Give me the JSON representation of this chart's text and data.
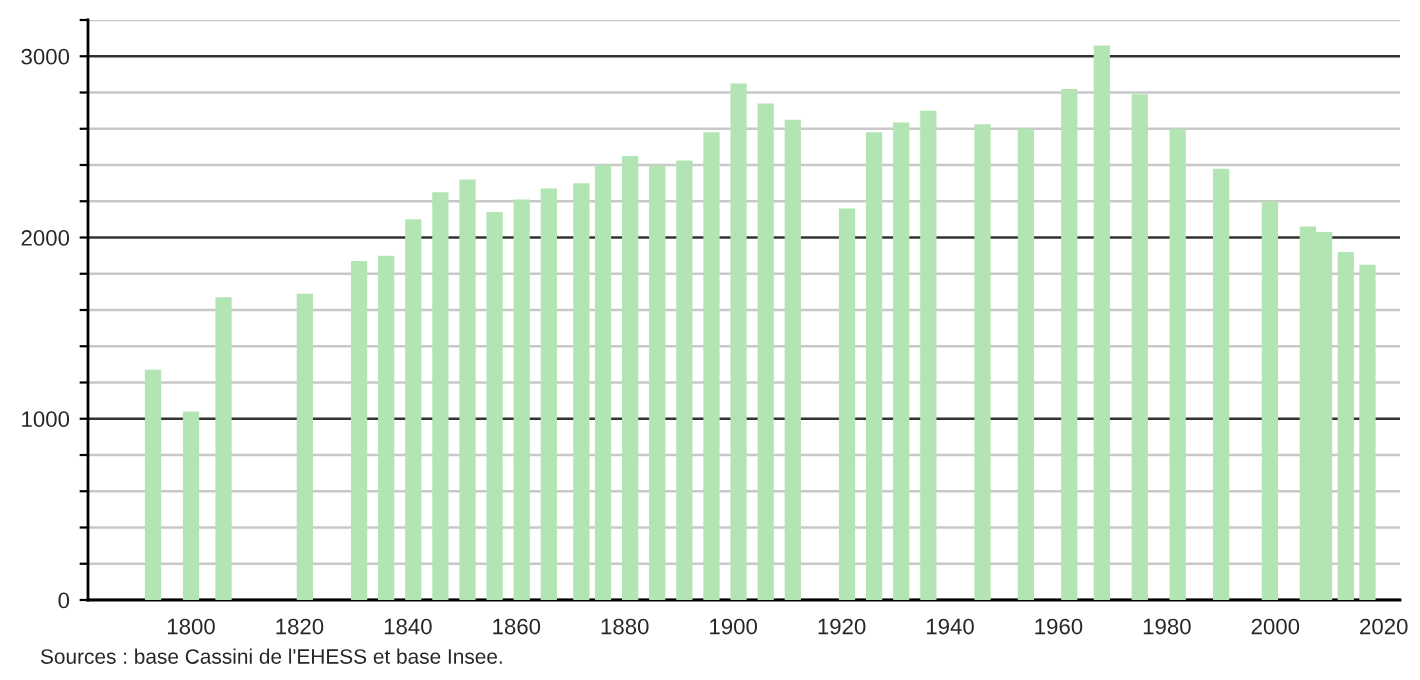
{
  "chart_data": {
    "type": "bar",
    "x": [
      1793,
      1800,
      1806,
      1821,
      1831,
      1836,
      1841,
      1846,
      1851,
      1856,
      1861,
      1866,
      1872,
      1876,
      1881,
      1886,
      1891,
      1896,
      1901,
      1906,
      1911,
      1921,
      1926,
      1931,
      1936,
      1946,
      1954,
      1962,
      1968,
      1975,
      1982,
      1990,
      1999,
      2006,
      2009,
      2013,
      2017
    ],
    "values": [
      1270,
      1040,
      1670,
      1690,
      1870,
      1900,
      2100,
      2250,
      2320,
      2140,
      2210,
      2270,
      2300,
      2400,
      2450,
      2400,
      2425,
      2580,
      2850,
      2740,
      2650,
      2160,
      2580,
      2635,
      2700,
      2625,
      2600,
      2820,
      3060,
      2790,
      2600,
      2380,
      2200,
      2060,
      2030,
      1920,
      1850
    ],
    "color": "#b3e4b3",
    "xlim": [
      1781,
      2023
    ],
    "ylim": [
      0,
      3200
    ],
    "xticks": [
      1800,
      1820,
      1840,
      1860,
      1880,
      1900,
      1920,
      1940,
      1960,
      1980,
      2000,
      2020
    ],
    "yticks": [
      0,
      {
        "value": 200,
        "label": null
      },
      {
        "value": 400,
        "label": null
      },
      {
        "value": 600,
        "label": null
      },
      {
        "value": 800,
        "label": null
      },
      1000,
      {
        "value": 1200,
        "label": null
      },
      {
        "value": 1400,
        "label": null
      },
      {
        "value": 1600,
        "label": null
      },
      {
        "value": 1800,
        "label": null
      },
      2000,
      {
        "value": 2200,
        "label": null
      },
      {
        "value": 2400,
        "label": null
      },
      {
        "value": 2600,
        "label": null
      },
      {
        "value": 2800,
        "label": null
      },
      3000,
      {
        "value": 3200,
        "label": null
      }
    ],
    "grid": "y",
    "annotations": [
      "Sources : base Cassini de l'EHESS et base Insee."
    ]
  }
}
